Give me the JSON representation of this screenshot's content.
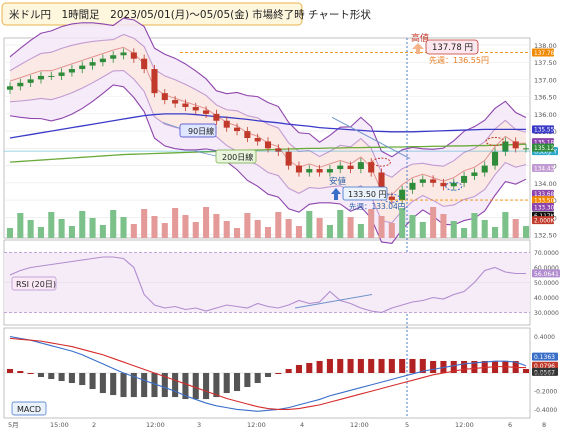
{
  "title": "米ドル円　1時間足　2023/05/01(月)～05/05(金) 市場終了時 チャート形状",
  "colors": {
    "up": "#2e8b3a",
    "down": "#c0392b",
    "bb_outer": "#8e44ad",
    "bb_inner": "#c39bd3",
    "ma90": "#3a3ac8",
    "ma200": "#6aaa3a",
    "rsi": "#b18ccf",
    "macd": "#3a6fc8",
    "signal": "#d62c2c",
    "hist_up": "#b22222",
    "hist_down": "#555555",
    "accent": "#f08a00"
  },
  "price_panel": {
    "annotations": {
      "high_label": "高値",
      "high_price": "137.78 円",
      "high_week": "先週：136.55円",
      "low_label": "安値",
      "low_price": "133.50 円",
      "low_week": "先週：133.04円",
      "ma90": "90日線",
      "ma200": "200日線"
    },
    "axis_ticks": [
      "138.00",
      "137.50",
      "137.00",
      "136.50",
      "136.00",
      "135.50",
      "135.00",
      "134.50",
      "134.00",
      "133.50",
      "133.00",
      "132.50"
    ],
    "right_badges": [
      {
        "text": "137.78",
        "color": "#f08a00",
        "price": 137.78
      },
      {
        "text": "135.55",
        "color": "#3a3ac8",
        "price": 135.55
      },
      {
        "text": "135.18",
        "color": "#8e44ad",
        "price": 135.18
      },
      {
        "text": "USD/JPY",
        "color": "#2aa8c8",
        "price": 134.92
      },
      {
        "text": "135.12",
        "color": "#2e8b3a",
        "price": 135.02
      },
      {
        "text": "134.43",
        "color": "#c39bd3",
        "price": 134.43
      },
      {
        "text": "133.68",
        "color": "#8e44ad",
        "price": 133.68
      },
      {
        "text": "133.50",
        "color": "#f08a00",
        "price": 133.5
      },
      {
        "text": "133.30",
        "color": "#8e44ad",
        "price": 133.3
      },
      {
        "text": "6.117K",
        "color": "#111111",
        "price": 133.05
      },
      {
        "text": "2.000K",
        "color": "#c0392b",
        "price": 132.92
      }
    ]
  },
  "rsi_panel": {
    "label": "RSI (20日)",
    "ticks": [
      "70.0000",
      "60.0000",
      "56.0641",
      "50.0000",
      "40.0000",
      "30.0000"
    ],
    "current": "56.0641"
  },
  "macd_panel": {
    "label": "MACD",
    "ticks": [
      "0.4000",
      "0.2000",
      "0.1363",
      "0.0796",
      "0.0567",
      "0.0000",
      "-0.2000",
      "-0.4000"
    ]
  },
  "x_axis": {
    "labels": [
      "5月",
      "15:00",
      "2",
      "12:00",
      "3",
      "12:00",
      "4",
      "12:00",
      "5",
      "12:00",
      "6",
      "8"
    ]
  },
  "chart_data": {
    "type": "line",
    "title": "米ドル円　1時間足　2023/05/01(月)～05/05(金) 市場終了時 チャート形状",
    "ylabel": "",
    "ylim": [
      132.5,
      138.2
    ],
    "grid": true,
    "series": [
      {
        "name": "USD/JPY",
        "values": [
          136.8,
          136.9,
          137.0,
          137.1,
          137.1,
          137.2,
          137.3,
          137.4,
          137.5,
          137.6,
          137.7,
          137.78,
          137.6,
          137.3,
          136.6,
          136.4,
          136.3,
          136.2,
          136.1,
          136.0,
          135.8,
          135.6,
          135.5,
          135.3,
          135.2,
          135.0,
          134.9,
          134.5,
          134.3,
          134.4,
          134.3,
          134.4,
          134.5,
          134.4,
          134.6,
          134.3,
          133.6,
          133.5,
          133.8,
          134.0,
          134.1,
          134.0,
          133.9,
          134.0,
          134.2,
          134.3,
          134.5,
          134.9,
          135.2,
          135.0,
          135.0
        ]
      },
      {
        "name": "90日線",
        "values": [
          135.3,
          135.35,
          135.4,
          135.45,
          135.5,
          135.55,
          135.6,
          135.65,
          135.7,
          135.75,
          135.8,
          135.85,
          135.9,
          135.95,
          135.98,
          136.0,
          136.0,
          136.0,
          135.98,
          135.95,
          135.92,
          135.9,
          135.87,
          135.84,
          135.8,
          135.77,
          135.74,
          135.7,
          135.67,
          135.64,
          135.6,
          135.58,
          135.56,
          135.54,
          135.52,
          135.5,
          135.49,
          135.48,
          135.48,
          135.48,
          135.49,
          135.5,
          135.51,
          135.52,
          135.53,
          135.54,
          135.55,
          135.55,
          135.55,
          135.55,
          135.55
        ]
      },
      {
        "name": "200日線",
        "values": [
          134.6,
          134.62,
          134.64,
          134.66,
          134.68,
          134.7,
          134.72,
          134.74,
          134.76,
          134.78,
          134.8,
          134.82,
          134.83,
          134.84,
          134.85,
          134.86,
          134.87,
          134.88,
          134.89,
          134.9,
          134.91,
          134.92,
          134.93,
          134.94,
          134.95,
          134.96,
          134.97,
          134.98,
          134.99,
          135.0,
          135.0,
          135.01,
          135.01,
          135.02,
          135.02,
          135.03,
          135.03,
          135.04,
          135.04,
          135.05,
          135.05,
          135.06,
          135.06,
          135.07,
          135.07,
          135.08,
          135.08,
          135.09,
          135.1,
          135.11,
          135.12
        ]
      }
    ],
    "rsi": [
      55,
      58,
      60,
      61,
      62,
      63,
      64,
      65,
      66,
      67,
      67,
      66,
      60,
      42,
      35,
      33,
      34,
      32,
      33,
      31,
      33,
      35,
      34,
      33,
      36,
      34,
      33,
      35,
      38,
      36,
      37,
      44,
      38,
      36,
      33,
      31,
      30,
      33,
      35,
      37,
      38,
      40,
      39,
      42,
      44,
      50,
      58,
      60,
      57,
      56,
      56
    ],
    "macd": [
      0.4,
      0.38,
      0.36,
      0.33,
      0.3,
      0.27,
      0.24,
      0.2,
      0.15,
      0.1,
      0.05,
      0.0,
      -0.04,
      -0.08,
      -0.12,
      -0.16,
      -0.2,
      -0.25,
      -0.29,
      -0.33,
      -0.36,
      -0.38,
      -0.4,
      -0.41,
      -0.42,
      -0.41,
      -0.4,
      -0.38,
      -0.35,
      -0.32,
      -0.29,
      -0.25,
      -0.22,
      -0.19,
      -0.16,
      -0.13,
      -0.1,
      -0.07,
      -0.04,
      -0.01,
      0.02,
      0.04,
      0.06,
      0.08,
      0.1,
      0.11,
      0.12,
      0.13,
      0.13,
      0.12,
      0.08
    ],
    "signal": [
      0.38,
      0.37,
      0.36,
      0.35,
      0.33,
      0.31,
      0.29,
      0.26,
      0.23,
      0.2,
      0.16,
      0.12,
      0.08,
      0.04,
      0.0,
      -0.04,
      -0.08,
      -0.12,
      -0.16,
      -0.2,
      -0.24,
      -0.28,
      -0.31,
      -0.34,
      -0.37,
      -0.39,
      -0.4,
      -0.4,
      -0.39,
      -0.37,
      -0.35,
      -0.32,
      -0.29,
      -0.26,
      -0.23,
      -0.2,
      -0.17,
      -0.14,
      -0.11,
      -0.08,
      -0.05,
      -0.02,
      0.0,
      0.02,
      0.04,
      0.05,
      0.06,
      0.07,
      0.07,
      0.06,
      0.06
    ]
  }
}
